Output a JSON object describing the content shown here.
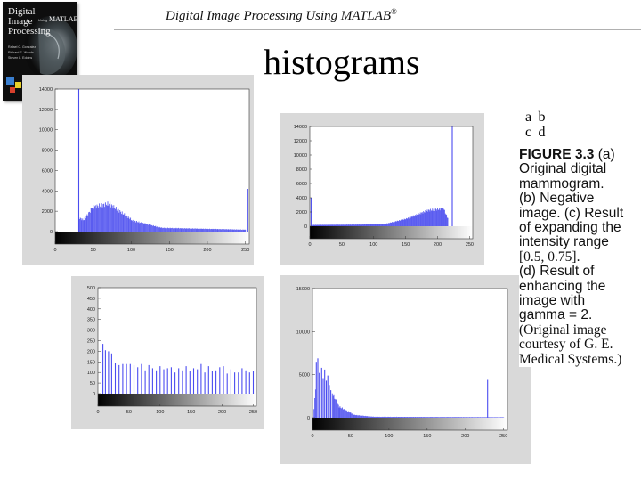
{
  "header": {
    "title": "Digital Image Processing Using MATLAB",
    "reg": "®"
  },
  "book": {
    "line1": "Digital",
    "line2": "Image",
    "line3": "Processing",
    "using": "Using",
    "matlab": "MATLAB",
    "authors": [
      "Rafael C. Gonzalez",
      "Richard E. Woods",
      "Steven L. Eddins"
    ]
  },
  "slide": {
    "title": "histograms"
  },
  "figure": {
    "labels": {
      "a": "a",
      "b": "b",
      "c": "c",
      "d": "d"
    },
    "caption_number": "FIGURE 3.3",
    "caption_lines": [
      {
        "t": "(a)",
        "serif": false
      },
      {
        "t": "Original digital",
        "serif": false
      },
      {
        "t": "mammogram.",
        "serif": false
      },
      {
        "t": "(b) Negative",
        "serif": false
      },
      {
        "t": "image. (c) Result",
        "serif": false
      },
      {
        "t": "of expanding the",
        "serif": false
      },
      {
        "t": "intensity range",
        "serif": false
      },
      {
        "t": "[0.5, 0.75].",
        "serif": true
      },
      {
        "t": "(d) Result of",
        "serif": false
      },
      {
        "t": "enhancing the",
        "serif": false
      },
      {
        "t": "image with",
        "serif": false
      },
      {
        "t": "gamma = 2.",
        "serif": false
      },
      {
        "t": "(Original image",
        "serif": true
      },
      {
        "t": "courtesy of G. E.",
        "serif": true
      },
      {
        "t": "Medical Systems.)",
        "serif": true
      }
    ]
  },
  "chart_data": [
    {
      "panel": "a",
      "type": "bar",
      "xlim": [
        0,
        255
      ],
      "ylim": [
        0,
        14000
      ],
      "xticks": [
        0,
        50,
        100,
        150,
        200,
        250
      ],
      "yticks": [
        0,
        2000,
        4000,
        6000,
        8000,
        10000,
        12000,
        14000
      ],
      "spikes": [
        [
          31,
          14000
        ],
        [
          253,
          4200
        ]
      ],
      "segments": [
        [
          31,
          38,
          1500,
          1200
        ],
        [
          38,
          48,
          1300,
          2400
        ],
        [
          48,
          72,
          2600,
          3000
        ],
        [
          72,
          100,
          2900,
          1300
        ],
        [
          100,
          140,
          1200,
          400
        ],
        [
          140,
          250,
          400,
          200
        ]
      ]
    },
    {
      "panel": "b",
      "type": "bar",
      "xlim": [
        0,
        255
      ],
      "ylim": [
        0,
        14000
      ],
      "xticks": [
        0,
        50,
        100,
        150,
        200,
        250
      ],
      "yticks": [
        0,
        2000,
        4000,
        6000,
        8000,
        10000,
        12000,
        14000
      ],
      "spikes": [
        [
          2,
          4000
        ],
        [
          223,
          14000
        ]
      ],
      "segments": [
        [
          5,
          80,
          200,
          250
        ],
        [
          80,
          120,
          250,
          400
        ],
        [
          120,
          150,
          400,
          1100
        ],
        [
          150,
          185,
          1100,
          2400
        ],
        [
          185,
          210,
          2400,
          2700
        ],
        [
          210,
          216,
          2500,
          1200
        ]
      ]
    },
    {
      "panel": "c",
      "type": "bar",
      "xlim": [
        0,
        255
      ],
      "ylim": [
        0,
        500
      ],
      "xticks": [
        0,
        50,
        100,
        150,
        200,
        250
      ],
      "yticks": [
        0,
        50,
        100,
        150,
        200,
        250,
        300,
        350,
        400,
        450,
        500
      ],
      "spikes": [
        [
          8,
          235
        ],
        [
          12,
          205
        ],
        [
          17,
          200
        ],
        [
          22,
          190
        ],
        [
          28,
          145
        ],
        [
          34,
          135
        ],
        [
          40,
          140
        ],
        [
          46,
          140
        ],
        [
          52,
          140
        ],
        [
          58,
          135
        ],
        [
          64,
          125
        ],
        [
          70,
          140
        ],
        [
          76,
          110
        ],
        [
          82,
          135
        ],
        [
          88,
          120
        ],
        [
          94,
          110
        ],
        [
          100,
          130
        ],
        [
          106,
          115
        ],
        [
          112,
          120
        ],
        [
          118,
          125
        ],
        [
          124,
          100
        ],
        [
          130,
          120
        ],
        [
          136,
          110
        ],
        [
          142,
          130
        ],
        [
          148,
          105
        ],
        [
          154,
          120
        ],
        [
          160,
          115
        ],
        [
          166,
          140
        ],
        [
          172,
          100
        ],
        [
          178,
          130
        ],
        [
          184,
          105
        ],
        [
          190,
          110
        ],
        [
          196,
          125
        ],
        [
          202,
          130
        ],
        [
          208,
          95
        ],
        [
          214,
          115
        ],
        [
          220,
          100
        ],
        [
          226,
          100
        ],
        [
          232,
          120
        ],
        [
          238,
          110
        ],
        [
          244,
          100
        ],
        [
          250,
          105
        ]
      ]
    },
    {
      "panel": "d",
      "type": "bar",
      "xlim": [
        0,
        255
      ],
      "ylim": [
        0,
        15000
      ],
      "xticks": [
        0,
        50,
        100,
        150,
        200,
        250
      ],
      "yticks": [
        0,
        5000,
        10000,
        15000
      ],
      "spikes": [
        [
          5,
          6500
        ],
        [
          7,
          6900
        ],
        [
          9,
          5200
        ],
        [
          12,
          5800
        ],
        [
          14,
          4600
        ],
        [
          16,
          5600
        ],
        [
          18,
          4300
        ],
        [
          20,
          4900
        ],
        [
          22,
          3800
        ],
        [
          24,
          3200
        ],
        [
          229,
          4400
        ]
      ],
      "segments": [
        [
          2,
          4,
          1200,
          3500
        ],
        [
          26,
          35,
          3100,
          1400
        ],
        [
          35,
          55,
          1400,
          350
        ],
        [
          55,
          80,
          350,
          120
        ],
        [
          80,
          250,
          120,
          60
        ]
      ]
    }
  ]
}
